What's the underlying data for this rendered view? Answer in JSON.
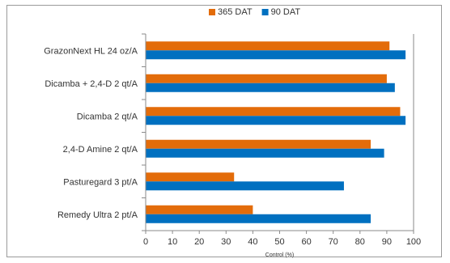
{
  "chart_data": {
    "type": "bar",
    "orientation": "horizontal",
    "categories": [
      "GrazonNext HL  24 oz/A",
      "Dicamba + 2,4-D  2 qt/A",
      "Dicamba  2 qt/A",
      "2,4-D Amine  2 qt/A",
      "Pasturegard  3 pt/A",
      "Remedy Ultra  2 pt/A"
    ],
    "series": [
      {
        "name": "365 DAT",
        "color": "#e36c0a",
        "values": [
          91,
          90,
          95,
          84,
          33,
          40
        ]
      },
      {
        "name": "90 DAT",
        "color": "#0070c0",
        "values": [
          97,
          93,
          97,
          89,
          74,
          84
        ]
      }
    ],
    "title": "",
    "xlabel": "Control (%)",
    "ylabel": "",
    "xlim": [
      0,
      100
    ],
    "xticks": [
      0,
      10,
      20,
      30,
      40,
      50,
      60,
      70,
      80,
      90,
      100
    ],
    "grid": false,
    "legend_position": "top-center"
  }
}
